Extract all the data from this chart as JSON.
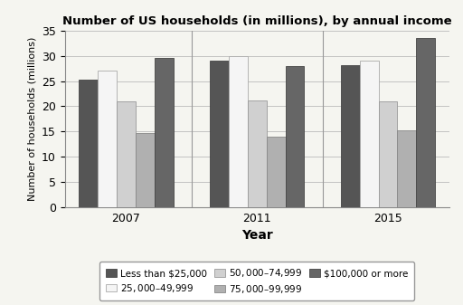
{
  "title": "Number of US households (in millions), by annual income",
  "xlabel": "Year",
  "ylabel": "Number of households (millions)",
  "years": [
    "2007",
    "2011",
    "2015"
  ],
  "categories": [
    "Less than $25,000",
    "$25,000–$49,999",
    "$50,000–$74,999",
    "$75,000–$99,999",
    "$100,000 or more"
  ],
  "values": {
    "Less than $25,000": [
      25.3,
      29.0,
      28.2
    ],
    "$25,000–$49,999": [
      27.0,
      30.0,
      29.0
    ],
    "$50,000–$74,999": [
      21.0,
      21.2,
      21.0
    ],
    "$75,000–$99,999": [
      14.8,
      14.0,
      15.3
    ],
    "$100,000 or more": [
      29.5,
      28.0,
      33.5
    ]
  },
  "colors": [
    "#555555",
    "#f5f5f5",
    "#d0d0d0",
    "#b0b0b0",
    "#666666"
  ],
  "edgecolors": [
    "#444444",
    "#aaaaaa",
    "#999999",
    "#888888",
    "#444444"
  ],
  "ylim": [
    0,
    35
  ],
  "yticks": [
    0,
    5,
    10,
    15,
    20,
    25,
    30,
    35
  ],
  "bar_width": 0.13,
  "group_centers": [
    0.35,
    1.25,
    2.15
  ],
  "background_color": "#f5f5f0",
  "legend_labels": [
    "Less than $25,000",
    "$25,000–$49,999",
    "$50,000–$74,999",
    "$75,000–$99,999",
    "$100,000 or more"
  ]
}
